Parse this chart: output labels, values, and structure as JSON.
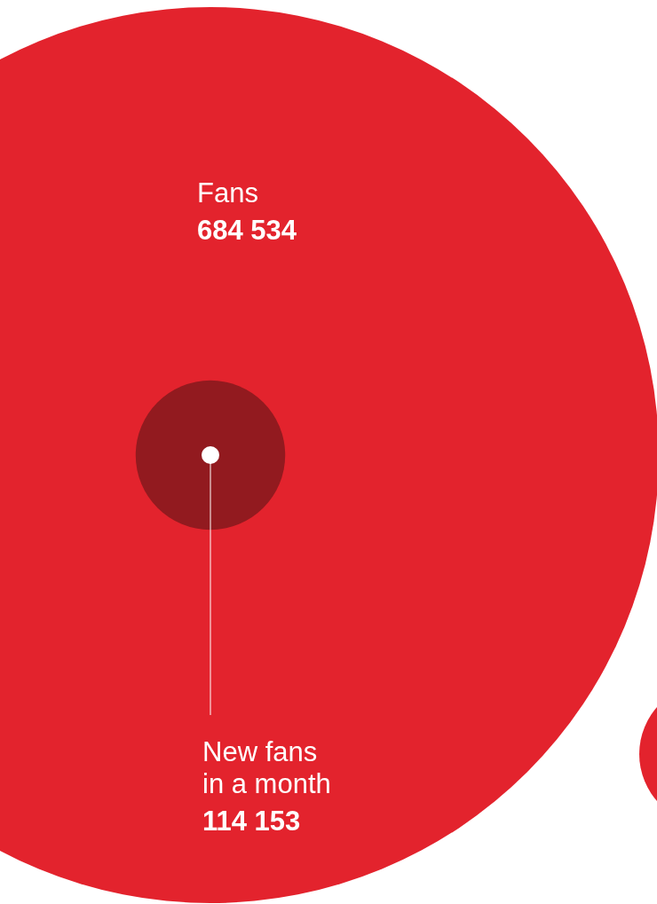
{
  "chart_data": {
    "type": "other",
    "categories": [
      "Fans",
      "New fans in a month"
    ],
    "values": [
      684534,
      114153
    ],
    "colors": [
      "#e3232d",
      "#921a1f"
    ],
    "value_labels": [
      "684 534",
      "114 153"
    ]
  }
}
